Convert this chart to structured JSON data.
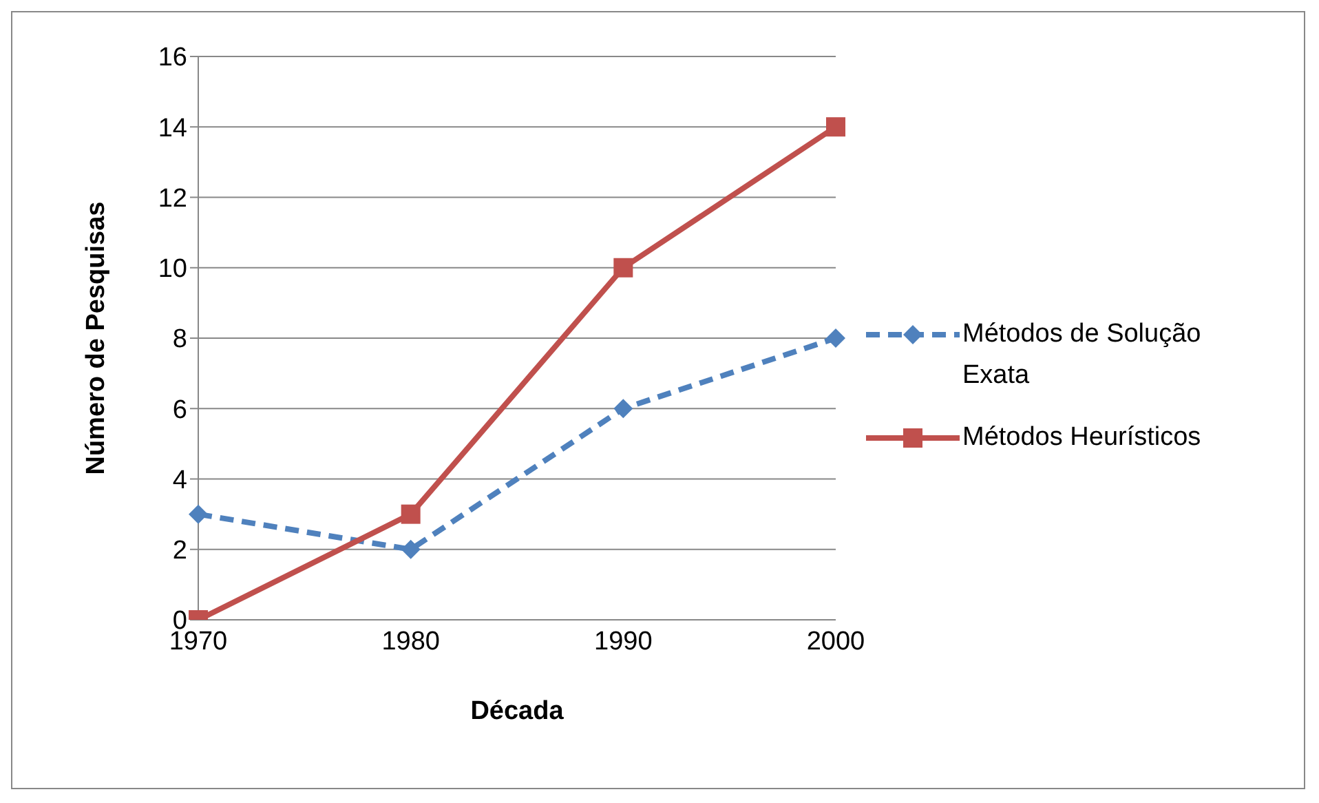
{
  "chart_data": {
    "type": "line",
    "xlabel": "Década",
    "ylabel": "Número de Pesquisas",
    "categories": [
      "1970",
      "1980",
      "1990",
      "2000"
    ],
    "series": [
      {
        "name": "Métodos de Solução Exata",
        "color": "#4f81bd",
        "values": [
          3,
          2,
          6,
          8
        ],
        "marker": "diamond",
        "line_style": "dashed"
      },
      {
        "name": "Métodos Heurísticos",
        "color": "#c0504d",
        "values": [
          0,
          3,
          10,
          14
        ],
        "marker": "square",
        "line_style": "solid"
      }
    ],
    "ylim": [
      0,
      16
    ],
    "yticks": [
      0,
      2,
      4,
      6,
      8,
      10,
      12,
      14,
      16
    ],
    "grid": "y",
    "legend": "right"
  }
}
